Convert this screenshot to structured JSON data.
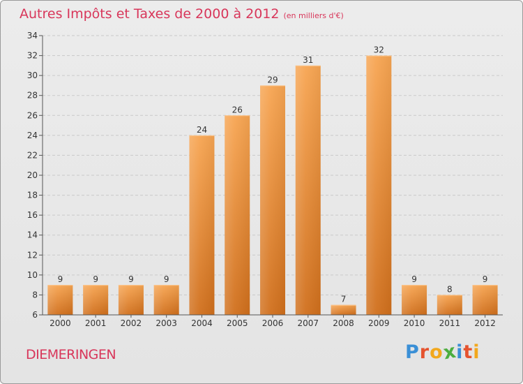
{
  "header": {
    "title": "Autres Impôts et Taxes de 2000 à 2012",
    "unit": "(en milliers d'€)"
  },
  "footer": {
    "commune": "DIEMERINGEN",
    "brand": "Proxiti",
    "brand_letters": [
      "P",
      "r",
      "o",
      "x",
      "i",
      "t",
      "i"
    ],
    "brand_colors": [
      "#3a8fd6",
      "#e5532f",
      "#f2a81d",
      "#4cae3f",
      "#3a8fd6",
      "#e5532f",
      "#f2a81d"
    ]
  },
  "colors": {
    "title": "#d8365a",
    "bar_top": "#f7a552",
    "bar_bottom": "#d06f1c",
    "grid": "#c9c9c9",
    "axis": "#555555"
  },
  "chart_data": {
    "type": "bar",
    "categories": [
      "2000",
      "2001",
      "2002",
      "2003",
      "2004",
      "2005",
      "2006",
      "2007",
      "2008",
      "2009",
      "2010",
      "2011",
      "2012"
    ],
    "values": [
      9,
      9,
      9,
      9,
      24,
      26,
      29,
      31,
      7,
      32,
      9,
      8,
      9
    ],
    "ylim": [
      6,
      34
    ],
    "yticks": [
      6,
      8,
      10,
      12,
      14,
      16,
      18,
      20,
      22,
      24,
      26,
      28,
      30,
      32,
      34
    ],
    "title": "Autres Impôts et Taxes de 2000 à 2012",
    "xlabel": "",
    "ylabel": "",
    "grid": true,
    "data_labels": true
  }
}
